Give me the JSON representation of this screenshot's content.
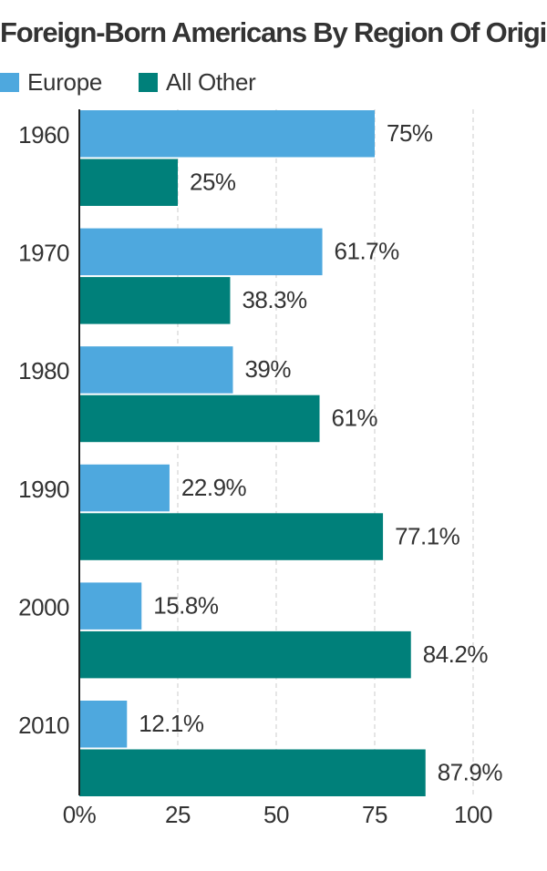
{
  "chart_data": {
    "type": "bar",
    "orientation": "horizontal",
    "title": "Foreign-Born Americans By Region Of Origin",
    "categories": [
      "1960",
      "1970",
      "1980",
      "1990",
      "2000",
      "2010"
    ],
    "series": [
      {
        "name": "Europe",
        "values": [
          75,
          61.7,
          39,
          22.9,
          15.8,
          12.1
        ],
        "labels": [
          "75%",
          "61.7%",
          "39%",
          "22.9%",
          "15.8%",
          "12.1%"
        ],
        "color": "#4EA8DE"
      },
      {
        "name": "All Other",
        "values": [
          25,
          38.3,
          61,
          77.1,
          84.2,
          87.9
        ],
        "labels": [
          "25%",
          "38.3%",
          "61%",
          "77.1%",
          "84.2%",
          "87.9%"
        ],
        "color": "#00807A"
      }
    ],
    "xlim": [
      0,
      100
    ],
    "xticks": [
      0,
      25,
      50,
      75,
      100
    ],
    "xtick_labels": [
      "0%",
      "25",
      "50",
      "75",
      "100"
    ],
    "grid": true,
    "legend_position": "top-left"
  }
}
